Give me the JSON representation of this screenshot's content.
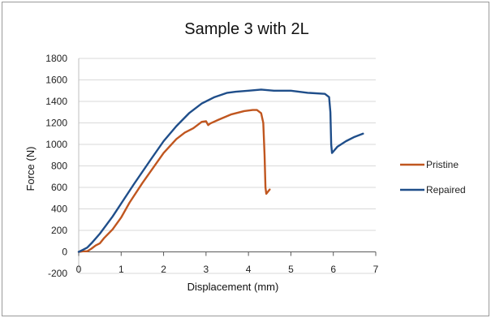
{
  "chart_data": {
    "type": "line",
    "title": "Sample 3 with 2L",
    "xlabel": "Displacement (mm)",
    "ylabel": "Force (N)",
    "xlim": [
      0,
      7
    ],
    "ylim": [
      -200,
      1800
    ],
    "xticks": [
      "0",
      "1",
      "2",
      "3",
      "4",
      "5",
      "6",
      "7"
    ],
    "yticks": [
      "-200",
      "0",
      "200",
      "400",
      "600",
      "800",
      "1000",
      "1200",
      "1400",
      "1600",
      "1800"
    ],
    "grid": "horizontal",
    "legend_position": "right",
    "series": [
      {
        "name": "Pristine",
        "color": "#c0561f",
        "points": [
          [
            0.0,
            0
          ],
          [
            0.1,
            5
          ],
          [
            0.2,
            5
          ],
          [
            0.3,
            30
          ],
          [
            0.4,
            60
          ],
          [
            0.5,
            80
          ],
          [
            0.6,
            130
          ],
          [
            0.8,
            210
          ],
          [
            1.0,
            320
          ],
          [
            1.2,
            460
          ],
          [
            1.5,
            640
          ],
          [
            2.0,
            920
          ],
          [
            2.3,
            1050
          ],
          [
            2.5,
            1110
          ],
          [
            2.7,
            1150
          ],
          [
            2.9,
            1210
          ],
          [
            3.0,
            1215
          ],
          [
            3.05,
            1180
          ],
          [
            3.1,
            1195
          ],
          [
            3.3,
            1230
          ],
          [
            3.6,
            1280
          ],
          [
            3.9,
            1310
          ],
          [
            4.1,
            1320
          ],
          [
            4.2,
            1320
          ],
          [
            4.3,
            1290
          ],
          [
            4.35,
            1200
          ],
          [
            4.38,
            900
          ],
          [
            4.4,
            600
          ],
          [
            4.42,
            540
          ],
          [
            4.5,
            580
          ]
        ]
      },
      {
        "name": "Repaired",
        "color": "#1f4e8a",
        "points": [
          [
            0.0,
            0
          ],
          [
            0.1,
            20
          ],
          [
            0.2,
            40
          ],
          [
            0.3,
            80
          ],
          [
            0.5,
            170
          ],
          [
            0.8,
            330
          ],
          [
            1.0,
            450
          ],
          [
            1.3,
            630
          ],
          [
            1.7,
            860
          ],
          [
            2.0,
            1030
          ],
          [
            2.3,
            1170
          ],
          [
            2.6,
            1290
          ],
          [
            2.9,
            1380
          ],
          [
            3.2,
            1440
          ],
          [
            3.5,
            1480
          ],
          [
            3.7,
            1490
          ],
          [
            4.0,
            1500
          ],
          [
            4.3,
            1510
          ],
          [
            4.6,
            1500
          ],
          [
            5.0,
            1500
          ],
          [
            5.4,
            1480
          ],
          [
            5.8,
            1470
          ],
          [
            5.9,
            1440
          ],
          [
            5.93,
            1300
          ],
          [
            5.95,
            1000
          ],
          [
            5.97,
            920
          ],
          [
            6.1,
            980
          ],
          [
            6.3,
            1030
          ],
          [
            6.5,
            1070
          ],
          [
            6.7,
            1100
          ]
        ]
      }
    ]
  }
}
